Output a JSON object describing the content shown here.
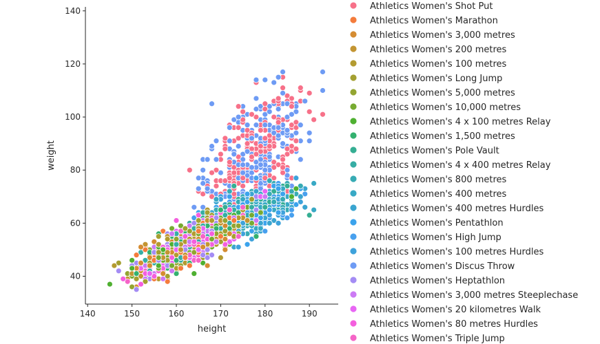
{
  "chart_data": {
    "type": "scatter",
    "xlabel": "height",
    "ylabel": "weight",
    "xlim": [
      139.5,
      196.5
    ],
    "ylim": [
      29.5,
      141.5
    ],
    "xticks": [
      140,
      150,
      160,
      170,
      180,
      190
    ],
    "yticks": [
      40,
      60,
      80,
      100,
      120,
      140
    ],
    "grid": false,
    "legend_position": "right",
    "series": [
      {
        "name": "Athletics Women's Shot Put",
        "color": "#f77189"
      },
      {
        "name": "Athletics Women's Marathon",
        "color": "#f47c3c"
      },
      {
        "name": "Athletics Women's 3,000 metres",
        "color": "#d58c32"
      },
      {
        "name": "Athletics Women's 200 metres",
        "color": "#c39532"
      },
      {
        "name": "Athletics Women's 100 metres",
        "color": "#b39b31"
      },
      {
        "name": "Athletics Women's Long Jump",
        "color": "#a4a031"
      },
      {
        "name": "Athletics Women's 5,000 metres",
        "color": "#93a531"
      },
      {
        "name": "Athletics Women's 10,000 metres",
        "color": "#77ab31"
      },
      {
        "name": "Athletics Women's 4 x 100 metres Relay",
        "color": "#4fb031"
      },
      {
        "name": "Athletics Women's 1,500 metres",
        "color": "#33b16f"
      },
      {
        "name": "Athletics Women's Pole Vault",
        "color": "#35ae93"
      },
      {
        "name": "Athletics Women's 4 x 400 metres Relay",
        "color": "#36ada4"
      },
      {
        "name": "Athletics Women's 800 metres",
        "color": "#37abb4"
      },
      {
        "name": "Athletics Women's 400 metres",
        "color": "#38a9c5"
      },
      {
        "name": "Athletics Women's 400 metres Hurdles",
        "color": "#3aa5d0"
      },
      {
        "name": "Athletics Women's Pentathlon",
        "color": "#3ba3ec"
      },
      {
        "name": "Athletics Women's High Jump",
        "color": "#48a0ee"
      },
      {
        "name": "Athletics Women's 100 metres Hurdles",
        "color": "#3ea2db"
      },
      {
        "name": "Athletics Women's Discus Throw",
        "color": "#6e9bf4"
      },
      {
        "name": "Athletics Women's Heptathlon",
        "color": "#a48cf4"
      },
      {
        "name": "Athletics Women's 3,000 metres Steeplechase",
        "color": "#cc7af4"
      },
      {
        "name": "Athletics Women's 20 kilometres Walk",
        "color": "#e866f4"
      },
      {
        "name": "Athletics Women's 80 metres Hurdles",
        "color": "#f45fde"
      },
      {
        "name": "Athletics Women's Triple Jump",
        "color": "#f564c7"
      }
    ],
    "clusters": [
      {
        "series": [
          0,
          18
        ],
        "x_mean": 179,
        "x_sd": 6,
        "y_mean": 90,
        "y_sd": 12,
        "slope": 0.7,
        "count": 360
      },
      {
        "series": [
          0,
          18
        ],
        "x_mean": 175,
        "x_sd": 5,
        "y_mean": 76,
        "y_sd": 5,
        "slope": 0.5,
        "count": 150
      },
      {
        "series": [
          12,
          13,
          14,
          15,
          16,
          17,
          10
        ],
        "x_mean": 176,
        "x_sd": 6,
        "y_mean": 64,
        "y_sd": 5,
        "slope": 0.6,
        "count": 520
      },
      {
        "series": [
          1,
          2,
          3,
          4,
          5,
          6,
          7,
          8,
          9,
          11,
          19,
          20,
          21,
          22,
          23
        ],
        "x_mean": 163,
        "x_sd": 6,
        "y_mean": 52,
        "y_sd": 5,
        "slope": 0.8,
        "count": 700
      }
    ]
  }
}
